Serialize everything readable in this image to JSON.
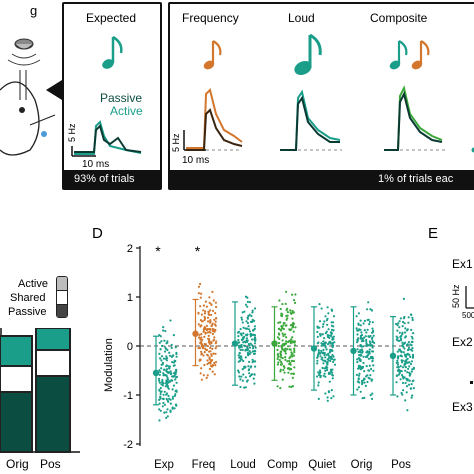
{
  "top_left_label_fragment": "g",
  "expected_panel": {
    "title": "Expected",
    "legend_passive": "Passive",
    "legend_active": "Active",
    "scale_hz": "5 Hz",
    "scale_ms": "10 ms",
    "footer": "93% of trials"
  },
  "deviant_panel": {
    "titles": [
      "Frequency",
      "Loud",
      "Composite"
    ],
    "scale_hz": "5 Hz",
    "scale_ms": "10 ms",
    "footer": "1% of trials eac"
  },
  "legend_c": {
    "items": [
      {
        "label": "Active",
        "color": "#bdbdbd"
      },
      {
        "label": "Shared",
        "color": "#ffffff"
      },
      {
        "label": "Passive",
        "color": "#444444"
      }
    ],
    "bar_labels": [
      "Orig",
      "Pos"
    ]
  },
  "panel_d": {
    "letter": "D",
    "ylabel": "Modulation",
    "yticks": [
      "-2",
      "-1",
      "0",
      "1",
      "2"
    ],
    "categories": [
      "Exp",
      "Freq",
      "Loud",
      "Comp",
      "Quiet",
      "Orig",
      "Pos"
    ],
    "significance": [
      "*",
      "*"
    ]
  },
  "panel_e": {
    "letter": "E",
    "labels": [
      "Ex1",
      "Ex2",
      "Ex3"
    ],
    "scale_hz": "50 Hz",
    "scale_ms": "500"
  },
  "colors": {
    "teal": "#1a9e8a",
    "dark_teal": "#0b4d40",
    "orange": "#d2772d",
    "green": "#3aa83a",
    "dark": "#111111"
  },
  "chart_data": {
    "type": "scatter",
    "title": "",
    "xlabel": "",
    "ylabel": "Modulation",
    "ylim": [
      -2,
      2
    ],
    "categories": [
      "Exp",
      "Freq",
      "Loud",
      "Comp",
      "Quiet",
      "Orig",
      "Pos"
    ],
    "means": [
      -0.55,
      0.25,
      0.05,
      0.05,
      -0.05,
      -0.1,
      -0.2
    ],
    "error_low": [
      -1.2,
      -0.4,
      -0.8,
      -0.7,
      -0.9,
      -1.0,
      -1.0
    ],
    "error_high": [
      0.2,
      0.95,
      0.9,
      0.8,
      0.8,
      0.8,
      0.6
    ],
    "series_colors": [
      "#1a9e8a",
      "#d2772d",
      "#1a9e8a",
      "#3aa83a",
      "#1a9e8a",
      "#1a9e8a",
      "#1a9e8a"
    ],
    "reference_line": 0,
    "significant": [
      "Exp",
      "Freq"
    ]
  }
}
